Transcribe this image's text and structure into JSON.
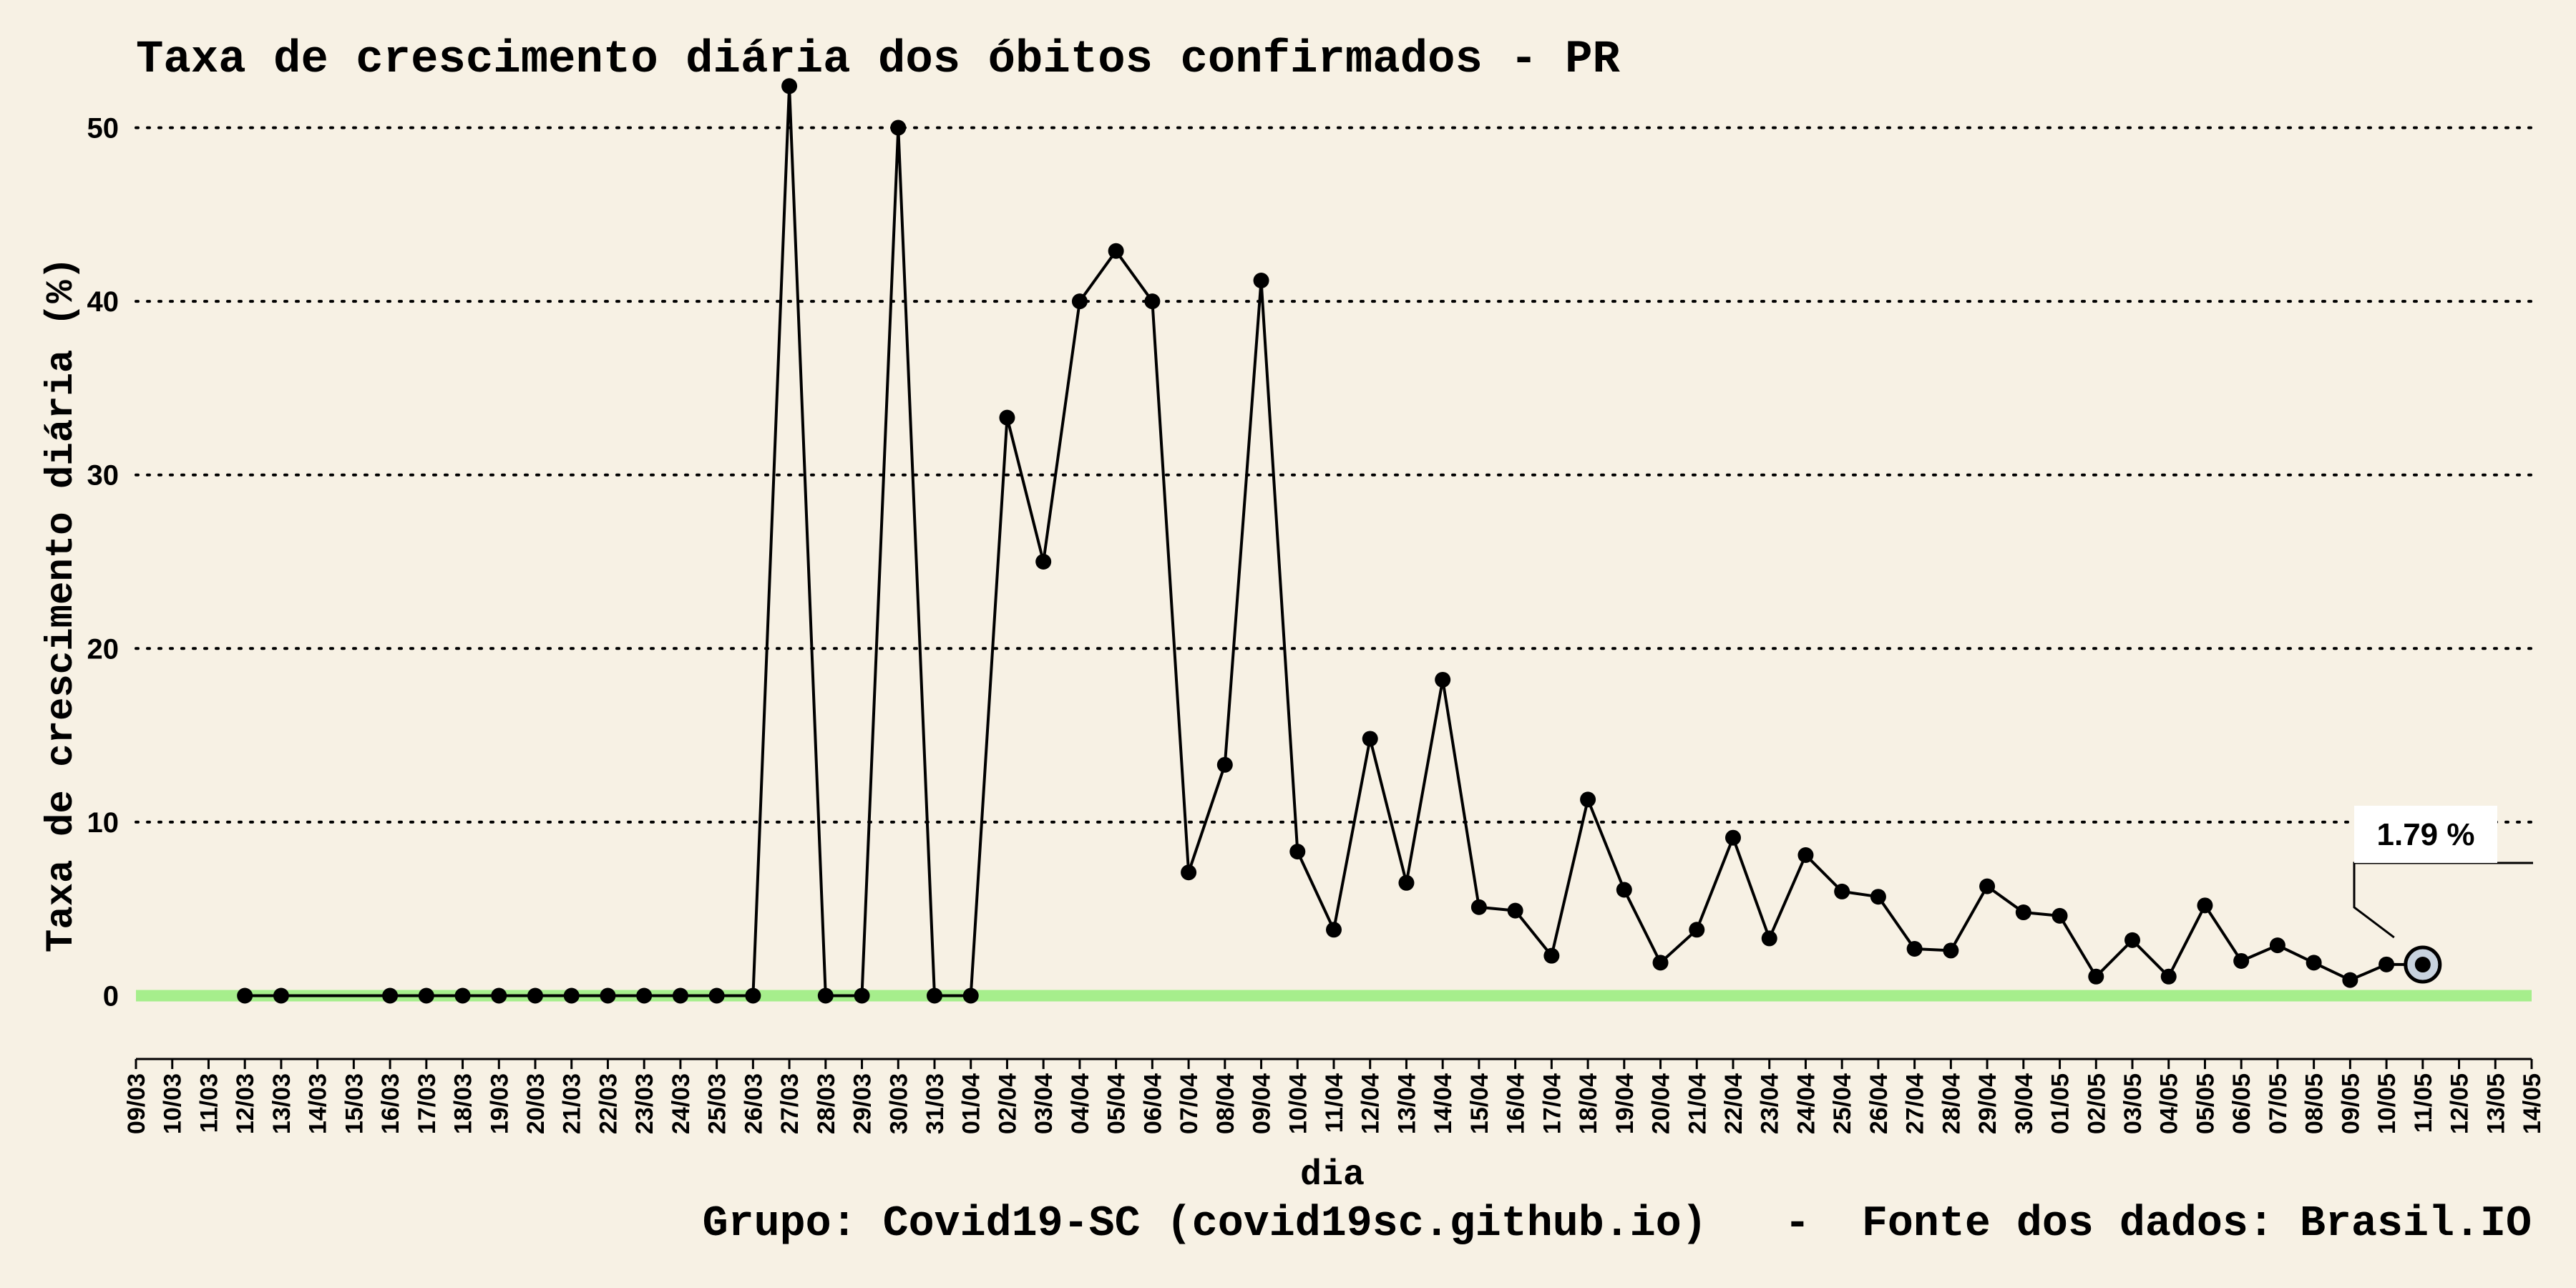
{
  "chart_data": {
    "type": "line",
    "title": "Taxa de crescimento diária dos óbitos confirmados - PR",
    "xlabel": "dia",
    "ylabel": "Taxa de crescimento diária (%)",
    "caption": "Grupo: Covid19-SC (covid19sc.github.io)   -  Fonte dos dados: Brasil.IO",
    "yticks": [
      0,
      10,
      20,
      30,
      40,
      50
    ],
    "ylim": [
      -2,
      52
    ],
    "grid": true,
    "reference_line": {
      "y": 0,
      "color": "#a6ee8c"
    },
    "line_color": "#000000",
    "highlight_color": "#c7d2de",
    "annotation": {
      "text": "1.79 %",
      "x": "11/05",
      "y": 1.79
    },
    "categories": [
      "09/03",
      "10/03",
      "11/03",
      "12/03",
      "13/03",
      "14/03",
      "15/03",
      "16/03",
      "17/03",
      "18/03",
      "19/03",
      "20/03",
      "21/03",
      "22/03",
      "23/03",
      "24/03",
      "25/03",
      "26/03",
      "27/03",
      "28/03",
      "29/03",
      "30/03",
      "31/03",
      "01/04",
      "02/04",
      "03/04",
      "04/04",
      "05/04",
      "06/04",
      "07/04",
      "08/04",
      "09/04",
      "10/04",
      "11/04",
      "12/04",
      "13/04",
      "14/04",
      "15/04",
      "16/04",
      "17/04",
      "18/04",
      "19/04",
      "20/04",
      "21/04",
      "22/04",
      "23/04",
      "24/04",
      "25/04",
      "26/04",
      "27/04",
      "28/04",
      "29/04",
      "30/04",
      "01/05",
      "02/05",
      "03/05",
      "04/05",
      "05/05",
      "06/05",
      "07/05",
      "08/05",
      "09/05",
      "10/05",
      "11/05",
      "12/05",
      "13/05",
      "14/05"
    ],
    "series": [
      {
        "values": [
          null,
          null,
          null,
          0,
          0,
          null,
          null,
          0,
          0,
          0,
          0,
          0,
          0,
          0,
          0,
          0,
          0,
          0,
          52.4,
          0,
          0,
          50,
          0,
          0,
          33.3,
          25,
          40,
          42.9,
          40,
          7.1,
          13.3,
          41.2,
          8.3,
          3.8,
          14.8,
          6.5,
          18.2,
          5.1,
          4.9,
          2.3,
          11.3,
          6.1,
          1.9,
          3.8,
          9.1,
          3.3,
          8.1,
          6,
          5.7,
          2.7,
          2.6,
          6.3,
          4.8,
          4.6,
          1.1,
          3.2,
          1.1,
          5.2,
          2,
          2.9,
          1.9,
          0.9,
          1.8,
          1.79,
          null,
          null,
          null
        ]
      }
    ]
  }
}
